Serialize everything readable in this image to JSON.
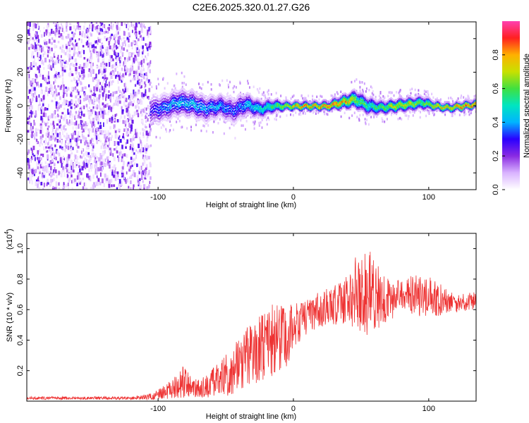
{
  "title": "C2E6.2025.320.01.27.G26",
  "colors": {
    "snr_line": "#ee3333",
    "axis": "#000000"
  },
  "chart_data": [
    {
      "type": "heatmap",
      "title": "C2E6.2025.320.01.27.G26",
      "xlabel": "Height of straight line (km)",
      "ylabel": "Frequency (Hz)",
      "xlim": [
        -197,
        135
      ],
      "ylim": [
        -50,
        50
      ],
      "x_ticks": [
        -100,
        0,
        100
      ],
      "x_tick_labels": [
        "-100",
        "0",
        "100"
      ],
      "y_ticks": [
        -40,
        -20,
        0,
        20,
        40
      ],
      "y_tick_labels": [
        "-40",
        "-20",
        "0",
        "20",
        "40"
      ],
      "colorbar": {
        "label": "Normalized spectral amplitude",
        "range": [
          0,
          1
        ],
        "ticks": [
          0.0,
          0.2,
          0.4,
          0.6,
          0.8
        ],
        "tick_labels": [
          "0.0",
          "0.2",
          "0.4",
          "0.6",
          "0.8"
        ],
        "colormap": [
          "#ffffff",
          "#d9b3ff",
          "#8a2be2",
          "#2a00ff",
          "#00b4ff",
          "#00e5c0",
          "#40e040",
          "#c8e000",
          "#ffb000",
          "#ff2020",
          "#ff40b0"
        ]
      },
      "noise_region_x": [
        -197,
        -106
      ],
      "ridge": {
        "x": [
          -106,
          -95,
          -85,
          -75,
          -65,
          -55,
          -45,
          -35,
          -25,
          -15,
          -5,
          5,
          15,
          25,
          35,
          45,
          55,
          65,
          75,
          85,
          95,
          105,
          115,
          125,
          135
        ],
        "frequency": [
          -3,
          -1,
          2,
          1,
          -2,
          0,
          -3,
          1,
          -2,
          0,
          0,
          0,
          0,
          0,
          2,
          4,
          0,
          -1,
          0,
          1,
          2,
          0,
          -1,
          0,
          1
        ],
        "amplitude": [
          0.3,
          0.4,
          0.45,
          0.45,
          0.4,
          0.42,
          0.35,
          0.45,
          0.5,
          0.6,
          0.75,
          0.85,
          0.85,
          0.9,
          0.85,
          0.7,
          0.55,
          0.6,
          0.75,
          0.75,
          0.6,
          0.8,
          0.8,
          0.9,
          0.85
        ],
        "spread_hz": [
          7,
          6,
          6,
          6,
          6,
          5,
          6,
          5,
          4,
          3,
          2,
          2,
          2,
          2,
          3,
          4,
          4,
          3,
          3,
          3,
          3,
          2,
          2,
          2,
          2
        ]
      }
    },
    {
      "type": "line",
      "xlabel": "Height of straight line (km)",
      "ylabel": "SNR (10 * v/v)",
      "y_scale_label": "(x10",
      "y_scale_exponent": "4",
      "xlim": [
        -197,
        135
      ],
      "ylim": [
        0,
        1.1
      ],
      "x_ticks": [
        -100,
        0,
        100
      ],
      "x_tick_labels": [
        "-100",
        "0",
        "100"
      ],
      "y_ticks": [
        0.2,
        0.4,
        0.6,
        0.8,
        1.0
      ],
      "y_tick_labels": [
        "0.2",
        "0.4",
        "0.6",
        "0.8",
        "1.0"
      ],
      "series": [
        {
          "name": "SNR",
          "x": [
            -197,
            -150,
            -120,
            -105,
            -95,
            -85,
            -80,
            -75,
            -65,
            -55,
            -45,
            -35,
            -25,
            -15,
            -5,
            0,
            10,
            20,
            30,
            40,
            50,
            55,
            60,
            70,
            80,
            90,
            100,
            110,
            120,
            130,
            135
          ],
          "y": [
            0.02,
            0.02,
            0.02,
            0.03,
            0.06,
            0.1,
            0.14,
            0.09,
            0.1,
            0.14,
            0.2,
            0.28,
            0.34,
            0.4,
            0.42,
            0.5,
            0.55,
            0.6,
            0.63,
            0.68,
            0.72,
            0.7,
            0.68,
            0.66,
            0.68,
            0.7,
            0.68,
            0.66,
            0.64,
            0.65,
            0.66
          ],
          "noise": [
            0.01,
            0.01,
            0.01,
            0.02,
            0.05,
            0.08,
            0.12,
            0.06,
            0.08,
            0.12,
            0.16,
            0.2,
            0.22,
            0.24,
            0.22,
            0.15,
            0.12,
            0.12,
            0.14,
            0.18,
            0.28,
            0.32,
            0.25,
            0.14,
            0.12,
            0.14,
            0.14,
            0.1,
            0.06,
            0.06,
            0.06
          ]
        }
      ]
    }
  ]
}
